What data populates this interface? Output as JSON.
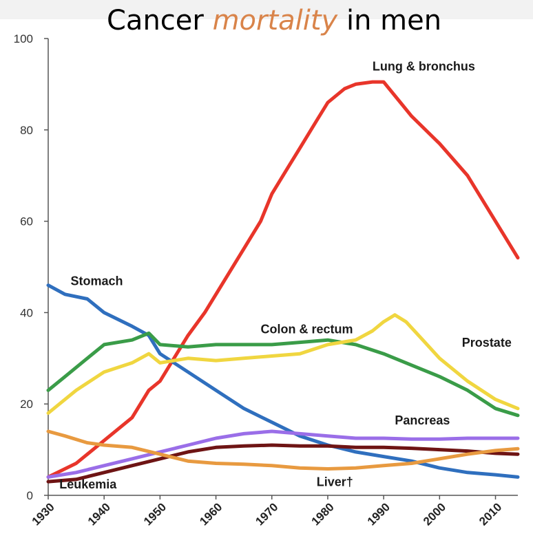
{
  "title": {
    "part1": "Cancer",
    "accent": "mortality",
    "part2": "in men",
    "accent_color": "#d9844a"
  },
  "chart_data": {
    "type": "line",
    "xlim": [
      1930,
      2014
    ],
    "ylim": [
      0,
      100
    ],
    "yticks": [
      0,
      20,
      40,
      60,
      80,
      100
    ],
    "xticks": [
      1930,
      1940,
      1950,
      1960,
      1970,
      1980,
      1990,
      2000,
      2010
    ],
    "grid": false,
    "legend": "inline labels",
    "series": [
      {
        "name": "Lung & bronchus",
        "color": "#e8352a",
        "x": [
          1930,
          1935,
          1940,
          1945,
          1948,
          1950,
          1953,
          1955,
          1958,
          1960,
          1965,
          1968,
          1970,
          1973,
          1975,
          1978,
          1980,
          1983,
          1985,
          1988,
          1990,
          1993,
          1995,
          2000,
          2005,
          2010,
          2014
        ],
        "y": [
          4,
          7,
          12,
          17,
          23,
          25,
          31,
          35,
          40,
          44,
          54,
          60,
          66,
          72,
          76,
          82,
          86,
          89,
          90,
          90.5,
          90.5,
          86,
          83,
          77,
          70,
          60,
          52
        ]
      },
      {
        "name": "Stomach",
        "color": "#2f6fbe",
        "x": [
          1930,
          1933,
          1937,
          1940,
          1945,
          1948,
          1950,
          1955,
          1960,
          1965,
          1970,
          1975,
          1980,
          1985,
          1990,
          1995,
          2000,
          2005,
          2010,
          2014
        ],
        "y": [
          46,
          44,
          43,
          40,
          37,
          35,
          31,
          27,
          23,
          19,
          16,
          13,
          11,
          9.5,
          8.5,
          7.5,
          6,
          5,
          4.5,
          4
        ]
      },
      {
        "name": "Colon & rectum",
        "color": "#3a9c48",
        "x": [
          1930,
          1933,
          1937,
          1940,
          1945,
          1948,
          1950,
          1955,
          1960,
          1965,
          1970,
          1975,
          1980,
          1985,
          1990,
          1995,
          2000,
          2005,
          2010,
          2014
        ],
        "y": [
          23,
          26,
          30,
          33,
          34,
          35.5,
          33,
          32.5,
          33,
          33,
          33,
          33.5,
          34,
          33,
          31,
          28.5,
          26,
          23,
          19,
          17.5
        ]
      },
      {
        "name": "Prostate",
        "color": "#f0d640",
        "x": [
          1930,
          1935,
          1940,
          1945,
          1948,
          1950,
          1955,
          1960,
          1965,
          1970,
          1975,
          1980,
          1985,
          1988,
          1990,
          1992,
          1994,
          1997,
          2000,
          2005,
          2010,
          2014
        ],
        "y": [
          18,
          23,
          27,
          29,
          31,
          29,
          30,
          29.5,
          30,
          30.5,
          31,
          33,
          34,
          36,
          38,
          39.5,
          38,
          34,
          30,
          25,
          21,
          19
        ]
      },
      {
        "name": "Pancreas",
        "color": "#9a6ee8",
        "x": [
          1930,
          1935,
          1940,
          1945,
          1950,
          1955,
          1960,
          1965,
          1970,
          1975,
          1980,
          1985,
          1990,
          1995,
          2000,
          2005,
          2010,
          2014
        ],
        "y": [
          4,
          5,
          6.5,
          8,
          9.5,
          11,
          12.5,
          13.5,
          14,
          13.5,
          13,
          12.5,
          12.5,
          12.3,
          12.3,
          12.5,
          12.5,
          12.5
        ]
      },
      {
        "name": "Leukemia",
        "color": "#6e1414",
        "x": [
          1930,
          1935,
          1940,
          1945,
          1950,
          1955,
          1960,
          1965,
          1970,
          1975,
          1980,
          1985,
          1990,
          1995,
          2000,
          2005,
          2010,
          2014
        ],
        "y": [
          3,
          3.5,
          5,
          6.5,
          8,
          9.5,
          10.5,
          10.8,
          11,
          10.8,
          10.8,
          10.5,
          10.5,
          10.3,
          10,
          9.7,
          9.2,
          9
        ]
      },
      {
        "name": "Liver†",
        "color": "#e89a40",
        "x": [
          1930,
          1933,
          1937,
          1940,
          1945,
          1950,
          1955,
          1960,
          1965,
          1970,
          1975,
          1980,
          1985,
          1990,
          1995,
          2000,
          2005,
          2010,
          2014
        ],
        "y": [
          14,
          13,
          11.5,
          11,
          10.5,
          9,
          7.5,
          7,
          6.8,
          6.5,
          6,
          5.8,
          6,
          6.5,
          7,
          8,
          9,
          9.8,
          10.2
        ]
      }
    ],
    "labels": [
      {
        "text": "Lung & bronchus",
        "x": 1988,
        "y": 93
      },
      {
        "text": "Stomach",
        "x": 1934,
        "y": 46
      },
      {
        "text": "Colon & rectum",
        "x": 1968,
        "y": 35.5
      },
      {
        "text": "Prostate",
        "x": 2004,
        "y": 32.5
      },
      {
        "text": "Pancreas",
        "x": 1992,
        "y": 15.5
      },
      {
        "text": "Leukemia",
        "x": 1932,
        "y": 1.5
      },
      {
        "text": "Liver†",
        "x": 1978,
        "y": 2
      }
    ]
  }
}
